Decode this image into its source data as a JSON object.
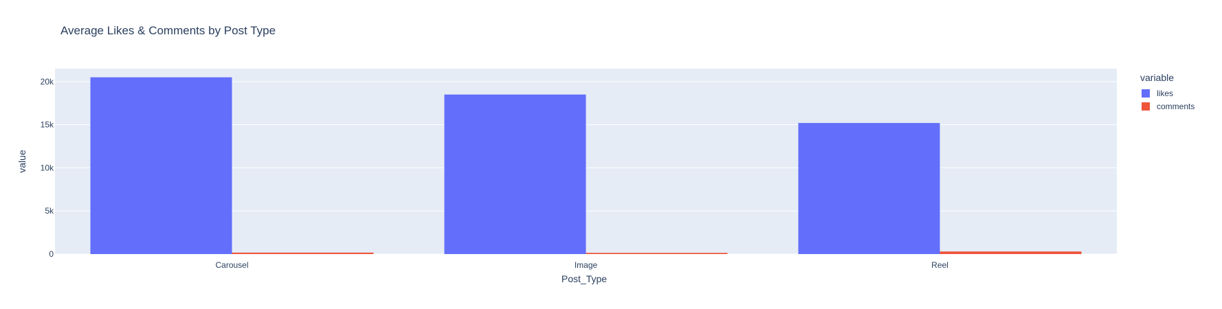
{
  "chart_data": {
    "type": "bar",
    "title": "Average Likes & Comments by Post Type",
    "xlabel": "Post_Type",
    "ylabel": "value",
    "categories": [
      "Carousel",
      "Image",
      "Reel"
    ],
    "series": [
      {
        "name": "likes",
        "values": [
          20500,
          18500,
          15200
        ],
        "color": "#636efa"
      },
      {
        "name": "comments",
        "values": [
          170,
          140,
          300
        ],
        "color": "#ef553b"
      }
    ],
    "ylim": [
      0,
      21500
    ],
    "yticks": [
      0,
      5000,
      10000,
      15000,
      20000
    ],
    "ytick_labels": [
      "0",
      "5k",
      "10k",
      "15k",
      "20k"
    ],
    "grid": true,
    "legend": {
      "title": "variable",
      "position": "right"
    },
    "colors": {
      "plot_bg": "#e5ecf6",
      "grid": "#ffffff",
      "text": "#2a3f5f"
    }
  }
}
